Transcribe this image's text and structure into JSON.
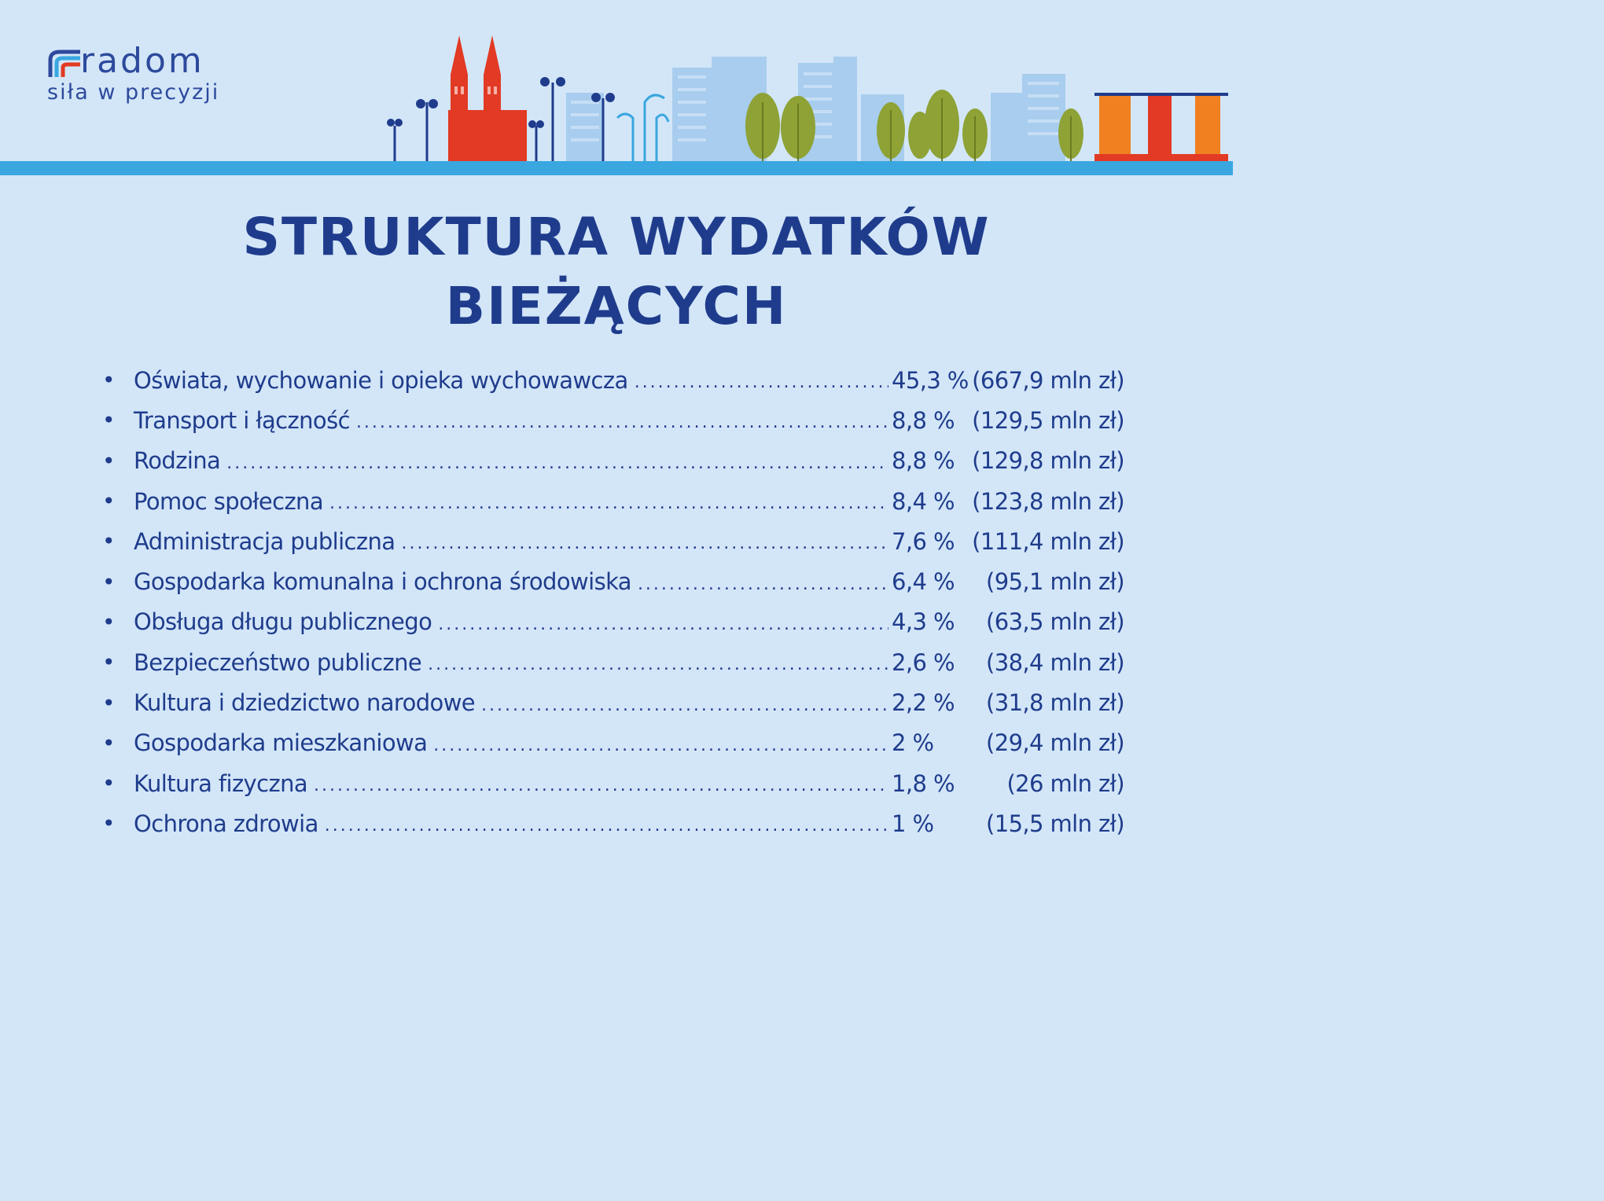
{
  "brand": {
    "name": "radom",
    "tagline": "siła w precyzji"
  },
  "title": {
    "line1": "STRUKTURA WYDATKÓW",
    "line2": "BIEŻĄCYCH"
  },
  "colors": {
    "background": "#d3e6f8",
    "text": "#1f3c8c",
    "band": "#3aa7e0",
    "church": "#e23a24",
    "trees": "#8ea236",
    "buildings": "#a8cdee",
    "orange_building": "#f08020"
  },
  "items": [
    {
      "label": "Oświata, wychowanie i opieka wychowawcza",
      "percent": "45,3 %",
      "amount": "(667,9 mln zł)"
    },
    {
      "label": "Transport i łączność",
      "percent": "8,8 %",
      "amount": "(129,5 mln zł)"
    },
    {
      "label": "Rodzina",
      "percent": "8,8 %",
      "amount": "(129,8 mln zł)"
    },
    {
      "label": "Pomoc społeczna",
      "percent": "8,4 %",
      "amount": "(123,8 mln zł)"
    },
    {
      "label": "Administracja publiczna",
      "percent": "7,6 %",
      "amount": "(111,4 mln zł)"
    },
    {
      "label": "Gospodarka komunalna i ochrona środowiska",
      "percent": "6,4 %",
      "amount": "(95,1 mln zł)"
    },
    {
      "label": "Obsługa długu publicznego",
      "percent": "4,3 %",
      "amount": "(63,5 mln zł)"
    },
    {
      "label": "Bezpieczeństwo publiczne",
      "percent": "2,6 %",
      "amount": "(38,4 mln zł)"
    },
    {
      "label": "Kultura i dziedzictwo narodowe",
      "percent": "2,2 %",
      "amount": "(31,8 mln zł)"
    },
    {
      "label": "Gospodarka mieszkaniowa",
      "percent": "2 %",
      "amount": "(29,4 mln zł)"
    },
    {
      "label": "Kultura fizyczna",
      "percent": "1,8 %",
      "amount": "(26 mln zł)"
    },
    {
      "label": "Ochrona zdrowia",
      "percent": "1 %",
      "amount": "(15,5 mln zł)"
    }
  ]
}
